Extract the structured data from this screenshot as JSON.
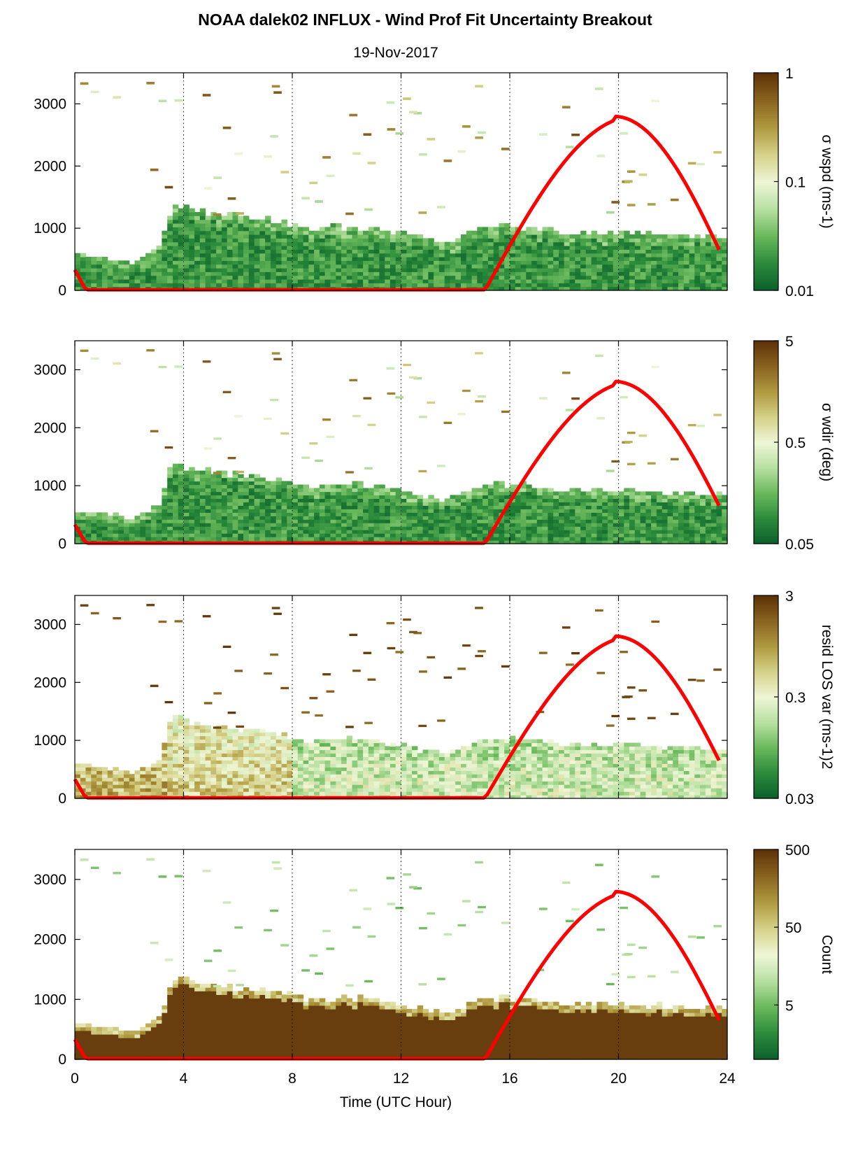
{
  "header": {
    "title": "NOAA dalek02 INFLUX - Wind Prof Fit Uncertainty Breakout",
    "subtitle": "19-Nov-2017"
  },
  "colors": {
    "elevation_curve": "#ff0000",
    "colormap": [
      "#0a5e2a",
      "#2a8a3a",
      "#68b85a",
      "#b6e0a0",
      "#eef6d6",
      "#d6d28a",
      "#b09a40",
      "#8a6420",
      "#5e3208"
    ]
  },
  "chart_data": [
    {
      "type": "heatmap",
      "xlabel": "",
      "ylabel": "",
      "xlim": [
        0,
        24
      ],
      "ylim": [
        0,
        3500
      ],
      "x_ticks": [
        "0",
        "4",
        "8",
        "12",
        "16",
        "20",
        "24"
      ],
      "y_ticks": [
        "0",
        "1000",
        "2000",
        "3000"
      ],
      "vertical_gridlines_at": [
        4,
        8,
        12,
        16,
        20
      ],
      "colorbar": {
        "label": "σ wspd (ms-1)",
        "scale": "log",
        "ticks": [
          "1",
          "0.1",
          "0.01"
        ],
        "range": [
          0.01,
          1
        ]
      },
      "overlay_line": {
        "color": "#ff0000",
        "x": [
          0,
          0.4,
          15.1,
          16,
          17,
          18,
          19,
          19.8,
          20.5,
          21.5,
          22.5,
          23.7
        ],
        "y": [
          330,
          10,
          10,
          820,
          1650,
          2300,
          2700,
          2800,
          2720,
          2350,
          1720,
          680
        ]
      },
      "profile_top_m": [
        [
          0,
          560
        ],
        [
          1,
          510
        ],
        [
          2,
          420
        ],
        [
          3,
          650
        ],
        [
          3.5,
          1360
        ],
        [
          4.5,
          1250
        ],
        [
          6,
          1150
        ],
        [
          7.5,
          1080
        ],
        [
          8.5,
          950
        ],
        [
          10,
          1000
        ],
        [
          11,
          980
        ],
        [
          12,
          870
        ],
        [
          13.5,
          730
        ],
        [
          15,
          1000
        ],
        [
          16.5,
          990
        ],
        [
          18,
          880
        ],
        [
          20,
          900
        ],
        [
          22,
          860
        ],
        [
          23.7,
          830
        ]
      ]
    },
    {
      "type": "heatmap",
      "xlabel": "",
      "ylabel": "",
      "xlim": [
        0,
        24
      ],
      "ylim": [
        0,
        3500
      ],
      "x_ticks": [
        "0",
        "4",
        "8",
        "12",
        "16",
        "20",
        "24"
      ],
      "y_ticks": [
        "0",
        "1000",
        "2000",
        "3000"
      ],
      "vertical_gridlines_at": [
        4,
        8,
        12,
        16,
        20
      ],
      "colorbar": {
        "label": "σ wdir (deg)",
        "scale": "log",
        "ticks": [
          "5",
          "0.5",
          "0.05"
        ],
        "range": [
          0.05,
          5
        ]
      },
      "overlay_line": {
        "color": "#ff0000",
        "x": [
          0,
          0.4,
          15.1,
          16,
          17,
          18,
          19,
          19.8,
          20.5,
          21.5,
          22.5,
          23.7
        ],
        "y": [
          330,
          10,
          10,
          820,
          1650,
          2300,
          2700,
          2800,
          2720,
          2350,
          1720,
          680
        ]
      },
      "profile_top_m": [
        [
          0,
          560
        ],
        [
          1,
          510
        ],
        [
          2,
          420
        ],
        [
          3,
          650
        ],
        [
          3.5,
          1360
        ],
        [
          4.5,
          1250
        ],
        [
          6,
          1150
        ],
        [
          7.5,
          1080
        ],
        [
          8.5,
          950
        ],
        [
          10,
          1000
        ],
        [
          11,
          980
        ],
        [
          12,
          870
        ],
        [
          13.5,
          730
        ],
        [
          15,
          1000
        ],
        [
          16.5,
          990
        ],
        [
          18,
          880
        ],
        [
          20,
          900
        ],
        [
          22,
          860
        ],
        [
          23.7,
          830
        ]
      ]
    },
    {
      "type": "heatmap",
      "xlabel": "",
      "ylabel": "",
      "xlim": [
        0,
        24
      ],
      "ylim": [
        0,
        3500
      ],
      "x_ticks": [
        "0",
        "4",
        "8",
        "12",
        "16",
        "20",
        "24"
      ],
      "y_ticks": [
        "0",
        "1000",
        "2000",
        "3000"
      ],
      "vertical_gridlines_at": [
        4,
        8,
        12,
        16,
        20
      ],
      "colorbar": {
        "label": "resid LOS var (ms-1)2",
        "scale": "log",
        "ticks": [
          "3",
          "0.3",
          "0.03"
        ],
        "range": [
          0.03,
          3
        ]
      },
      "overlay_line": {
        "color": "#ff0000",
        "x": [
          0,
          0.4,
          15.1,
          16,
          17,
          18,
          19,
          19.8,
          20.5,
          21.5,
          22.5,
          23.7
        ],
        "y": [
          330,
          10,
          10,
          820,
          1650,
          2300,
          2700,
          2800,
          2720,
          2350,
          1720,
          680
        ]
      },
      "profile_top_m": [
        [
          0,
          560
        ],
        [
          1,
          510
        ],
        [
          2,
          420
        ],
        [
          3,
          650
        ],
        [
          3.5,
          1360
        ],
        [
          4.5,
          1250
        ],
        [
          6,
          1150
        ],
        [
          7.5,
          1080
        ],
        [
          8.5,
          950
        ],
        [
          10,
          1000
        ],
        [
          11,
          980
        ],
        [
          12,
          870
        ],
        [
          13.5,
          730
        ],
        [
          15,
          1000
        ],
        [
          16.5,
          990
        ],
        [
          18,
          880
        ],
        [
          20,
          900
        ],
        [
          22,
          860
        ],
        [
          23.7,
          830
        ]
      ]
    },
    {
      "type": "heatmap",
      "xlabel": "Time (UTC Hour)",
      "ylabel": "",
      "xlim": [
        0,
        24
      ],
      "ylim": [
        0,
        3500
      ],
      "x_ticks": [
        "0",
        "4",
        "8",
        "12",
        "16",
        "20",
        "24"
      ],
      "y_ticks": [
        "0",
        "1000",
        "2000",
        "3000"
      ],
      "vertical_gridlines_at": [
        4,
        8,
        12,
        16,
        20
      ],
      "colorbar": {
        "label": "Count",
        "scale": "log",
        "ticks": [
          "500",
          "50",
          "5"
        ],
        "range": [
          1,
          500
        ]
      },
      "overlay_line": {
        "color": "#ff0000",
        "x": [
          0,
          0.4,
          15.1,
          16,
          17,
          18,
          19,
          19.8,
          20.5,
          21.5,
          22.5,
          23.7
        ],
        "y": [
          330,
          10,
          10,
          820,
          1650,
          2300,
          2700,
          2800,
          2720,
          2350,
          1720,
          680
        ]
      },
      "profile_top_m": [
        [
          0,
          560
        ],
        [
          1,
          510
        ],
        [
          2,
          420
        ],
        [
          3,
          650
        ],
        [
          3.5,
          1360
        ],
        [
          4.5,
          1250
        ],
        [
          6,
          1150
        ],
        [
          7.5,
          1080
        ],
        [
          8.5,
          950
        ],
        [
          10,
          1000
        ],
        [
          11,
          980
        ],
        [
          12,
          870
        ],
        [
          13.5,
          730
        ],
        [
          15,
          1000
        ],
        [
          16.5,
          990
        ],
        [
          18,
          880
        ],
        [
          20,
          900
        ],
        [
          22,
          860
        ],
        [
          23.7,
          830
        ]
      ]
    }
  ]
}
